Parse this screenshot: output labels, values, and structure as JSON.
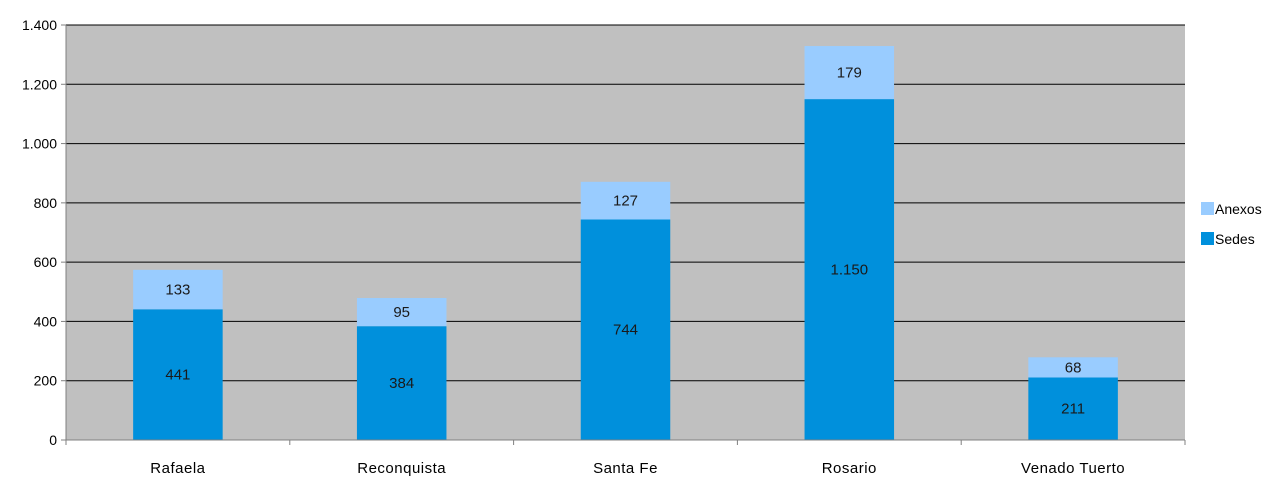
{
  "chart_data": {
    "type": "bar",
    "stacked": true,
    "categories": [
      "Rafaela",
      "Reconquista",
      "Santa Fe",
      "Rosario",
      "Venado Tuerto"
    ],
    "series": [
      {
        "name": "Sedes",
        "values": [
          441,
          384,
          744,
          1150,
          211
        ],
        "labels": [
          "441",
          "384",
          "744",
          "1.150",
          "211"
        ],
        "color": "#0090DC"
      },
      {
        "name": "Anexos",
        "values": [
          133,
          95,
          127,
          179,
          68
        ],
        "labels": [
          "133",
          "95",
          "127",
          "179",
          "68"
        ],
        "color": "#99CCFF"
      }
    ],
    "ylim": [
      0,
      1400
    ],
    "yticks": [
      0,
      200,
      400,
      600,
      800,
      1000,
      1200,
      1400
    ],
    "ytick_labels": [
      "0",
      "200",
      "400",
      "600",
      "800",
      "1.000",
      "1.200",
      "1.400"
    ],
    "grid": true,
    "plot_background": "#C0C0C0",
    "legend_position": "right",
    "legend_order": [
      "Anexos",
      "Sedes"
    ]
  }
}
